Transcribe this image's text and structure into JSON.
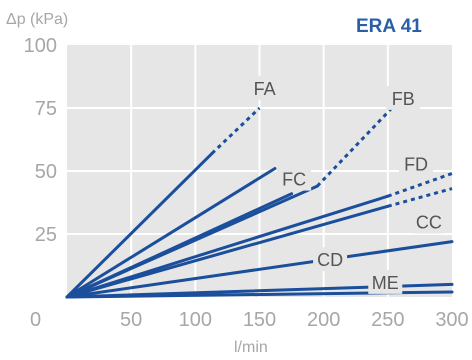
{
  "chart_data": {
    "type": "line",
    "title": "ERA 41",
    "title_color": "#2a5fa8",
    "ylabel": "Δp (kPa)",
    "xlabel": "l/min",
    "xlim": [
      0,
      300
    ],
    "ylim": [
      0,
      100
    ],
    "x_ticks": [
      "50",
      "100",
      "150",
      "200",
      "250",
      "300"
    ],
    "y_ticks": [
      "100",
      "75",
      "50",
      "25"
    ],
    "origin_label": "0",
    "grid": true,
    "line_color": "#1b4f9c",
    "series": [
      {
        "name": "FA",
        "solid": [
          [
            0,
            0
          ],
          [
            113,
            57
          ]
        ],
        "dashed": [
          [
            113,
            57
          ],
          [
            150,
            75
          ]
        ]
      },
      {
        "name": "FB",
        "solid": [
          [
            0,
            0
          ],
          [
            195,
            44
          ]
        ],
        "dashed": [
          [
            195,
            44
          ],
          [
            255,
            76
          ]
        ]
      },
      {
        "name": "FC",
        "solid": [
          [
            0,
            0
          ],
          [
            162,
            51
          ]
        ],
        "dashed": []
      },
      {
        "name": "",
        "solid": [
          [
            0,
            0
          ],
          [
            175,
            41
          ]
        ],
        "dashed": []
      },
      {
        "name": "FD",
        "solid": [
          [
            0,
            0
          ],
          [
            250,
            40
          ]
        ],
        "dashed": [
          [
            250,
            40
          ],
          [
            300,
            49
          ]
        ]
      },
      {
        "name": "",
        "solid": [
          [
            0,
            0
          ],
          [
            250,
            36
          ]
        ],
        "dashed": [
          [
            250,
            36
          ],
          [
            300,
            43
          ]
        ]
      },
      {
        "name": "CC",
        "solid": [
          [
            0,
            0
          ],
          [
            300,
            22
          ]
        ],
        "dashed": []
      },
      {
        "name": "CD",
        "solid": [
          [
            0,
            0
          ],
          [
            300,
            5
          ]
        ],
        "dashed": []
      },
      {
        "name": "ME",
        "solid": [
          [
            0,
            0
          ],
          [
            300,
            2
          ]
        ],
        "dashed": []
      }
    ]
  }
}
